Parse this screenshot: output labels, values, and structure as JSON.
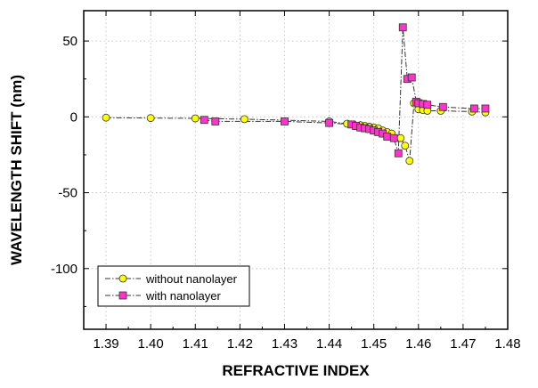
{
  "chart_data": {
    "type": "line",
    "xlabel": "REFRACTIVE INDEX",
    "ylabel": "WAVELENGTH SHIFT (nm)",
    "xlim": [
      1.385,
      1.48
    ],
    "ylim": [
      -140,
      70
    ],
    "xticks": [
      1.39,
      1.4,
      1.41,
      1.42,
      1.43,
      1.44,
      1.45,
      1.46,
      1.47,
      1.48
    ],
    "xtick_labels": [
      "1.39",
      "1.40",
      "1.41",
      "1.42",
      "1.43",
      "1.44",
      "1.45",
      "1.46",
      "1.47",
      "1.48"
    ],
    "yticks": [
      50,
      0,
      -50,
      -100
    ],
    "ytick_labels": [
      "50",
      "0",
      "-50",
      "-100"
    ],
    "grid": true,
    "legend_position": "bottom-left",
    "series": [
      {
        "name": "without nanolayer",
        "marker": "circle",
        "color": "#ffff00",
        "edge_color": "#333333",
        "line_style": "dash-dot",
        "x": [
          1.39,
          1.4,
          1.41,
          1.421,
          1.44,
          1.444,
          1.4455,
          1.447,
          1.448,
          1.449,
          1.45,
          1.451,
          1.452,
          1.453,
          1.454,
          1.456,
          1.457,
          1.458,
          1.459,
          1.46,
          1.461,
          1.462,
          1.465,
          1.472,
          1.475
        ],
        "y": [
          -0.5,
          -0.8,
          -1.0,
          -1.5,
          -3,
          -4.5,
          -5,
          -5.5,
          -6,
          -6.5,
          -7,
          -7.5,
          -9,
          -10,
          -11,
          -14,
          -19,
          -29,
          9,
          5,
          4.5,
          4,
          4,
          3.5,
          3
        ]
      },
      {
        "name": "with nanolayer",
        "marker": "square",
        "color": "#ff33cc",
        "edge_color": "#333333",
        "line_style": "dash-dot",
        "x": [
          1.412,
          1.4145,
          1.43,
          1.44,
          1.445,
          1.446,
          1.447,
          1.448,
          1.449,
          1.45,
          1.451,
          1.452,
          1.453,
          1.4545,
          1.4555,
          1.4565,
          1.4575,
          1.4585,
          1.4595,
          1.46,
          1.461,
          1.462,
          1.4655,
          1.4725,
          1.475
        ],
        "y": [
          -2,
          -3,
          -3,
          -4,
          -5,
          -6,
          -7,
          -7.5,
          -8,
          -9,
          -10,
          -11,
          -13,
          -14,
          -24,
          59,
          25,
          26,
          10,
          9,
          8.5,
          8,
          6.5,
          5.5,
          5.5
        ]
      }
    ]
  }
}
